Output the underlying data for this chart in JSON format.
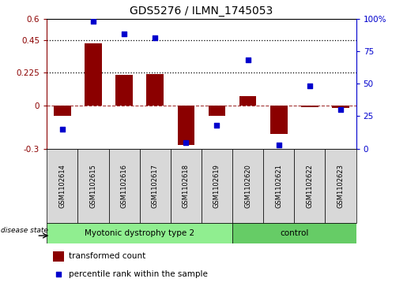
{
  "title": "GDS5276 / ILMN_1745053",
  "samples": [
    "GSM1102614",
    "GSM1102615",
    "GSM1102616",
    "GSM1102617",
    "GSM1102618",
    "GSM1102619",
    "GSM1102620",
    "GSM1102621",
    "GSM1102622",
    "GSM1102623"
  ],
  "transformed_count": [
    -0.075,
    0.43,
    0.21,
    0.215,
    -0.275,
    -0.07,
    0.065,
    -0.2,
    -0.015,
    -0.02
  ],
  "percentile_rank": [
    15,
    98,
    88,
    85,
    5,
    18,
    68,
    3,
    48,
    30
  ],
  "group_labels": [
    "Myotonic dystrophy type 2",
    "control"
  ],
  "group_n": [
    6,
    4
  ],
  "group_colors": [
    "#90EE90",
    "#66CC66"
  ],
  "bar_color": "#8B0000",
  "dot_color": "#0000CD",
  "ylim_left": [
    -0.3,
    0.6
  ],
  "ylim_right": [
    0,
    100
  ],
  "yticks_left": [
    -0.3,
    0.0,
    0.225,
    0.45,
    0.6
  ],
  "ytick_labels_left": [
    "-0.3",
    "0",
    "0.225",
    "0.45",
    "0.6"
  ],
  "yticks_right": [
    0,
    25,
    50,
    75,
    100
  ],
  "ytick_labels_right": [
    "0",
    "25",
    "50",
    "75",
    "100%"
  ],
  "hline_dotted": [
    0.225,
    0.45
  ],
  "hline_dashed": 0.0,
  "disease_state_label": "disease state",
  "legend_items": [
    "transformed count",
    "percentile rank within the sample"
  ],
  "sample_bg_color": "#d8d8d8",
  "plot_bg": "white"
}
